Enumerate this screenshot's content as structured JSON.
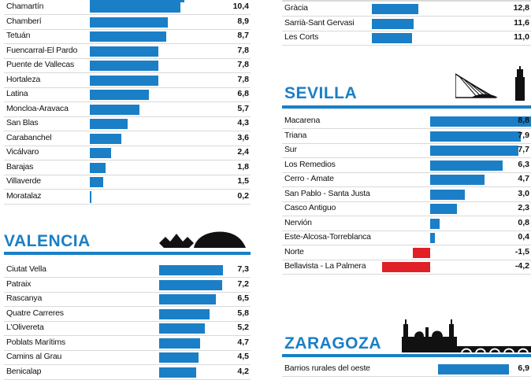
{
  "colors": {
    "accent": "#1a7fc6",
    "positive": "#1a7fc6",
    "negative": "#e01f26",
    "rule": "#1a7fc6",
    "title": "#1a7fc6"
  },
  "chart_data": [
    {
      "type": "bar",
      "title": "",
      "categories": [
        "Chamartín",
        "Chamberí",
        "Tetuán",
        "Fuencarral-El Pardo",
        "Puente de Vallecas",
        "Hortaleza",
        "Latina",
        "Moncloa-Aravaca",
        "San Blas",
        "Carabanchel",
        "Vicálvaro",
        "Barajas",
        "Villaverde",
        "Moratalaz"
      ],
      "values": [
        10.4,
        8.9,
        8.7,
        7.8,
        7.8,
        7.8,
        6.8,
        5.7,
        4.3,
        3.6,
        2.4,
        1.8,
        1.5,
        0.2
      ],
      "value_labels": [
        "10,4",
        "8,9",
        "8,7",
        "7,8",
        "7,8",
        "7,8",
        "6,8",
        "5,7",
        "4,3",
        "3,6",
        "2,4",
        "1,8",
        "1,5",
        "0,2"
      ]
    },
    {
      "type": "bar",
      "title": "VALENCIA",
      "categories": [
        "Ciutat Vella",
        "Patraix",
        "Rascanya",
        "Quatre Carreres",
        "L'Olivereta",
        "Poblats Marítims",
        "Camins al Grau",
        "Benicalap"
      ],
      "values": [
        7.3,
        7.2,
        6.5,
        5.8,
        5.2,
        4.7,
        4.5,
        4.2
      ],
      "value_labels": [
        "7,3",
        "7,2",
        "6,5",
        "5,8",
        "5,2",
        "4,7",
        "4,5",
        "4,2"
      ]
    },
    {
      "type": "bar",
      "title": "",
      "categories": [
        "Gràcia",
        "Sarrià-Sant Gervasi",
        "Les Corts"
      ],
      "values": [
        12.8,
        11.6,
        11.0
      ],
      "value_labels": [
        "12,8",
        "11,6",
        "11,0"
      ]
    },
    {
      "type": "bar",
      "title": "SEVILLA",
      "categories": [
        "Macarena",
        "Triana",
        "Sur",
        "Los Remedios",
        "Cerro - Amate",
        "San Pablo - Santa Justa",
        "Casco Antiguo",
        "Nervión",
        "Este-Alcosa-Torreblanca",
        "Norte",
        "Bellavista - La Palmera"
      ],
      "values": [
        8.8,
        7.9,
        7.7,
        6.3,
        4.7,
        3.0,
        2.3,
        0.8,
        0.4,
        -1.5,
        -4.2
      ],
      "value_labels": [
        "8,8",
        "7,9",
        "7,7",
        "6,3",
        "4,7",
        "3,0",
        "2,3",
        "0,8",
        "0,4",
        "-1,5",
        "-4,2"
      ]
    },
    {
      "type": "bar",
      "title": "ZARAGOZA",
      "categories": [
        "Barrios rurales del oeste"
      ],
      "values": [
        6.9
      ],
      "value_labels": [
        "6,9"
      ]
    }
  ]
}
